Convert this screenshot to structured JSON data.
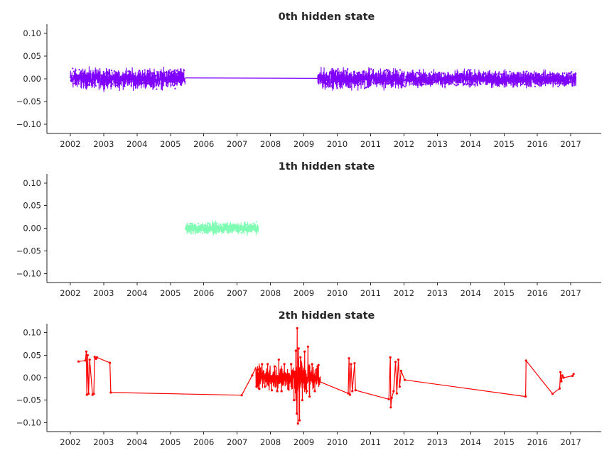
{
  "chart_data": [
    {
      "type": "line",
      "title": "0th hidden state",
      "xlabel": "",
      "ylabel": "",
      "color": "#7f00ff",
      "x_axis": "date",
      "xlim": [
        "2001-04-20",
        "2017-11-30"
      ],
      "ylim": [
        -0.12,
        0.12
      ],
      "xticks": [
        "2002",
        "2003",
        "2004",
        "2005",
        "2006",
        "2007",
        "2008",
        "2009",
        "2010",
        "2011",
        "2012",
        "2013",
        "2014",
        "2015",
        "2016",
        "2017"
      ],
      "yticks": [
        "0.10",
        "0.05",
        "0.00",
        "−0.05",
        "−0.10"
      ],
      "ytick_values": [
        0.1,
        0.05,
        0.0,
        -0.05,
        -0.1
      ],
      "grid": false,
      "segments": [
        {
          "start": "2002-01-02",
          "end": "2005-06-10",
          "amplitude": 0.03,
          "mean": 0.0
        },
        {
          "start": "2009-06-01",
          "end": "2012-01-05",
          "amplitude": 0.03,
          "mean": 0.0
        },
        {
          "start": "2012-01-20",
          "end": "2017-02-28",
          "amplitude": 0.025,
          "mean": 0.0
        }
      ],
      "connectors": [
        {
          "from": [
            "2005-06-10",
            0.002
          ],
          "to": [
            "2009-06-01",
            0.001
          ]
        },
        {
          "from": [
            "2012-01-05",
            -0.005
          ],
          "to": [
            "2012-01-20",
            0.0
          ]
        }
      ]
    },
    {
      "type": "line",
      "title": "1th hidden state",
      "xlabel": "",
      "ylabel": "",
      "color": "#80ffb4",
      "x_axis": "date",
      "xlim": [
        "2001-04-20",
        "2017-11-30"
      ],
      "ylim": [
        -0.12,
        0.12
      ],
      "xticks": [
        "2002",
        "2003",
        "2004",
        "2005",
        "2006",
        "2007",
        "2008",
        "2009",
        "2010",
        "2011",
        "2012",
        "2013",
        "2014",
        "2015",
        "2016",
        "2017"
      ],
      "yticks": [
        "0.10",
        "0.05",
        "0.00",
        "−0.05",
        "−0.10"
      ],
      "ytick_values": [
        0.1,
        0.05,
        0.0,
        -0.05,
        -0.1
      ],
      "grid": false,
      "segments": [
        {
          "start": "2005-06-15",
          "end": "2007-08-20",
          "amplitude": 0.018,
          "mean": 0.0
        }
      ],
      "connectors": []
    },
    {
      "type": "line",
      "title": "2th hidden state",
      "xlabel": "",
      "ylabel": "",
      "color": "#ff0000",
      "x_axis": "date",
      "xlim": [
        "2001-04-20",
        "2017-11-30"
      ],
      "ylim": [
        -0.12,
        0.12
      ],
      "xticks": [
        "2002",
        "2003",
        "2004",
        "2005",
        "2006",
        "2007",
        "2008",
        "2009",
        "2010",
        "2011",
        "2012",
        "2013",
        "2014",
        "2015",
        "2016",
        "2017"
      ],
      "yticks": [
        "0.10",
        "0.05",
        "0.00",
        "−0.05",
        "−0.10"
      ],
      "ytick_values": [
        0.1,
        0.05,
        0.0,
        -0.05,
        -0.1
      ],
      "grid": false,
      "points": [
        [
          "2002-04-01",
          0.036
        ],
        [
          "2002-06-15",
          0.038
        ],
        [
          "2002-06-25",
          0.058
        ],
        [
          "2002-07-01",
          -0.038
        ],
        [
          "2002-07-10",
          0.05
        ],
        [
          "2002-07-20",
          -0.036
        ],
        [
          "2002-08-01",
          0.04
        ],
        [
          "2002-09-01",
          -0.038
        ],
        [
          "2002-09-15",
          -0.036
        ],
        [
          "2002-09-25",
          0.046
        ],
        [
          "2002-10-10",
          0.042
        ],
        [
          "2002-10-20",
          0.045
        ],
        [
          "2003-03-10",
          0.033
        ],
        [
          "2003-03-20",
          -0.033
        ],
        [
          "2007-02-20",
          -0.039
        ],
        [
          "2007-06-15",
          0.005
        ],
        [
          "2007-08-01",
          -0.02
        ],
        [
          "2007-08-15",
          0.018
        ],
        [
          "2007-09-01",
          -0.025
        ],
        [
          "2007-10-01",
          0.03
        ],
        [
          "2007-11-01",
          -0.02
        ],
        [
          "2007-12-01",
          0.03
        ],
        [
          "2008-01-15",
          -0.028
        ],
        [
          "2008-02-15",
          0.025
        ],
        [
          "2008-03-15",
          -0.03
        ],
        [
          "2008-04-01",
          0.04
        ],
        [
          "2008-05-01",
          -0.03
        ],
        [
          "2008-06-01",
          0.03
        ],
        [
          "2008-07-15",
          -0.025
        ],
        [
          "2008-08-15",
          0.03
        ],
        [
          "2008-09-15",
          -0.05
        ],
        [
          "2008-10-05",
          0.06
        ],
        [
          "2008-10-15",
          -0.08
        ],
        [
          "2008-10-20",
          0.11
        ],
        [
          "2008-10-28",
          -0.102
        ],
        [
          "2008-11-05",
          0.065
        ],
        [
          "2008-11-15",
          -0.095
        ],
        [
          "2008-11-25",
          0.045
        ],
        [
          "2008-12-15",
          -0.05
        ],
        [
          "2009-01-10",
          0.058
        ],
        [
          "2009-02-01",
          -0.03
        ],
        [
          "2009-02-15",
          0.069
        ],
        [
          "2009-03-05",
          -0.042
        ],
        [
          "2009-04-01",
          0.03
        ],
        [
          "2009-05-01",
          -0.03
        ],
        [
          "2009-06-01",
          0.025
        ],
        [
          "2009-06-10",
          0.028
        ],
        [
          "2010-05-01",
          -0.035
        ],
        [
          "2010-05-10",
          0.043
        ],
        [
          "2010-05-20",
          -0.038
        ],
        [
          "2010-06-01",
          0.03
        ],
        [
          "2010-06-15",
          -0.03
        ],
        [
          "2010-07-10",
          0.032
        ],
        [
          "2010-07-20",
          -0.028
        ],
        [
          "2011-07-20",
          -0.048
        ],
        [
          "2011-08-05",
          0.045
        ],
        [
          "2011-08-10",
          -0.066
        ],
        [
          "2011-08-20",
          -0.045
        ],
        [
          "2011-09-10",
          -0.03
        ],
        [
          "2011-10-01",
          0.035
        ],
        [
          "2011-10-15",
          -0.035
        ],
        [
          "2011-11-01",
          0.04
        ],
        [
          "2011-11-15",
          -0.02
        ],
        [
          "2011-12-01",
          0.015
        ],
        [
          "2012-01-10",
          -0.005
        ],
        [
          "2015-08-25",
          -0.042
        ],
        [
          "2015-08-30",
          0.038
        ],
        [
          "2016-06-15",
          -0.036
        ],
        [
          "2016-09-01",
          -0.024
        ],
        [
          "2016-09-10",
          0.012
        ],
        [
          "2016-09-20",
          -0.008
        ],
        [
          "2016-10-01",
          0.005
        ],
        [
          "2016-10-15",
          0.0
        ],
        [
          "2017-01-20",
          0.004
        ],
        [
          "2017-02-01",
          0.008
        ]
      ],
      "dense_region": {
        "start": "2007-07-25",
        "end": "2009-07-01",
        "amplitude": 0.035
      }
    }
  ]
}
